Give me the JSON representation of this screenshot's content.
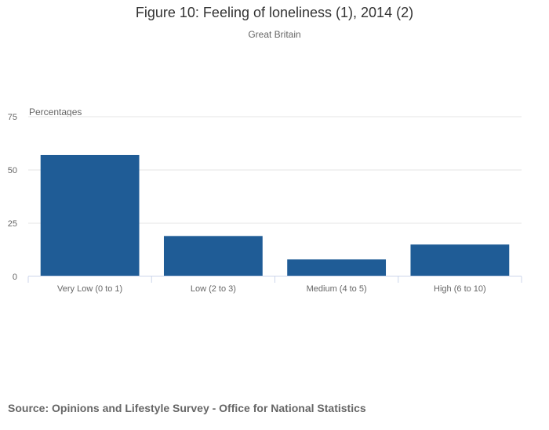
{
  "chart_data": {
    "type": "bar",
    "title": "Figure 10: Feeling of loneliness (1), 2014 (2)",
    "subtitle": "Great Britain",
    "ylabel": "Percentages",
    "xlabel": "",
    "categories": [
      "Very Low (0 to 1)",
      "Low (2 to 3)",
      "Medium (4 to 5)",
      "High (6 to 10)"
    ],
    "values": [
      57,
      19,
      8,
      15
    ],
    "ylim": [
      0,
      75
    ],
    "yticks": [
      "0",
      "25",
      "50",
      "75"
    ],
    "grid": true,
    "bar_color": "#1f5c96",
    "source": "Source: Opinions and Lifestyle Survey - Office for National Statistics"
  }
}
